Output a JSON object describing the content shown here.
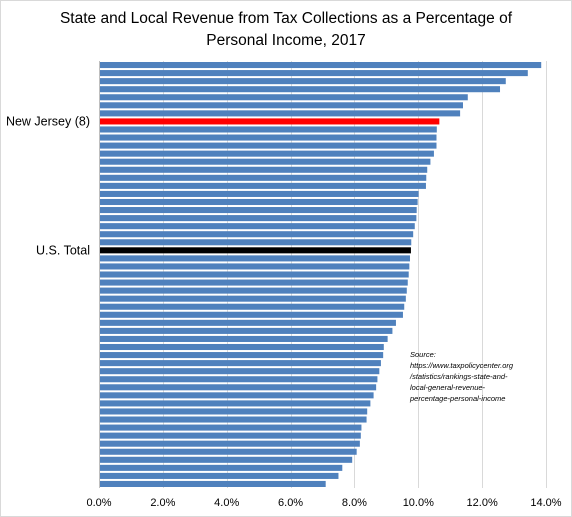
{
  "chart_data": {
    "type": "bar",
    "orientation": "horizontal",
    "title": "State and Local Revenue from Tax Collections as a Percentage of\nPersonal Income, 2017",
    "xlabel": "",
    "ylabel": "",
    "xlim": [
      0,
      14
    ],
    "x_tick_labels": [
      "0.0%",
      "2.0%",
      "4.0%",
      "6.0%",
      "8.0%",
      "10.0%",
      "12.0%",
      "14.0%"
    ],
    "grid": "vertical",
    "legend": "none",
    "highlights": [
      {
        "label": "New Jersey (8)",
        "bar_index": 7,
        "color": "#ff0000"
      },
      {
        "label": "U.S. Total",
        "bar_index": 23,
        "color": "#000000"
      }
    ],
    "bar_color": "#4f81bd",
    "values": [
      13.85,
      13.43,
      12.74,
      12.56,
      11.55,
      11.4,
      11.31,
      10.66,
      10.58,
      10.57,
      10.57,
      10.49,
      10.38,
      10.28,
      10.25,
      10.24,
      10.01,
      9.98,
      9.95,
      9.94,
      9.89,
      9.84,
      9.78,
      9.77,
      9.74,
      9.72,
      9.7,
      9.67,
      9.64,
      9.61,
      9.56,
      9.52,
      9.3,
      9.19,
      9.04,
      8.92,
      8.9,
      8.83,
      8.78,
      8.72,
      8.68,
      8.6,
      8.5,
      8.4,
      8.38,
      8.22,
      8.2,
      8.17,
      8.07,
      7.93,
      7.62,
      7.5,
      7.1
    ]
  },
  "source_note": [
    "Source:",
    "https://www.taxpolicycenter.org",
    "/statistics/rankings-state-and-",
    "local-general-revenue-",
    "percentage-personal-income"
  ]
}
